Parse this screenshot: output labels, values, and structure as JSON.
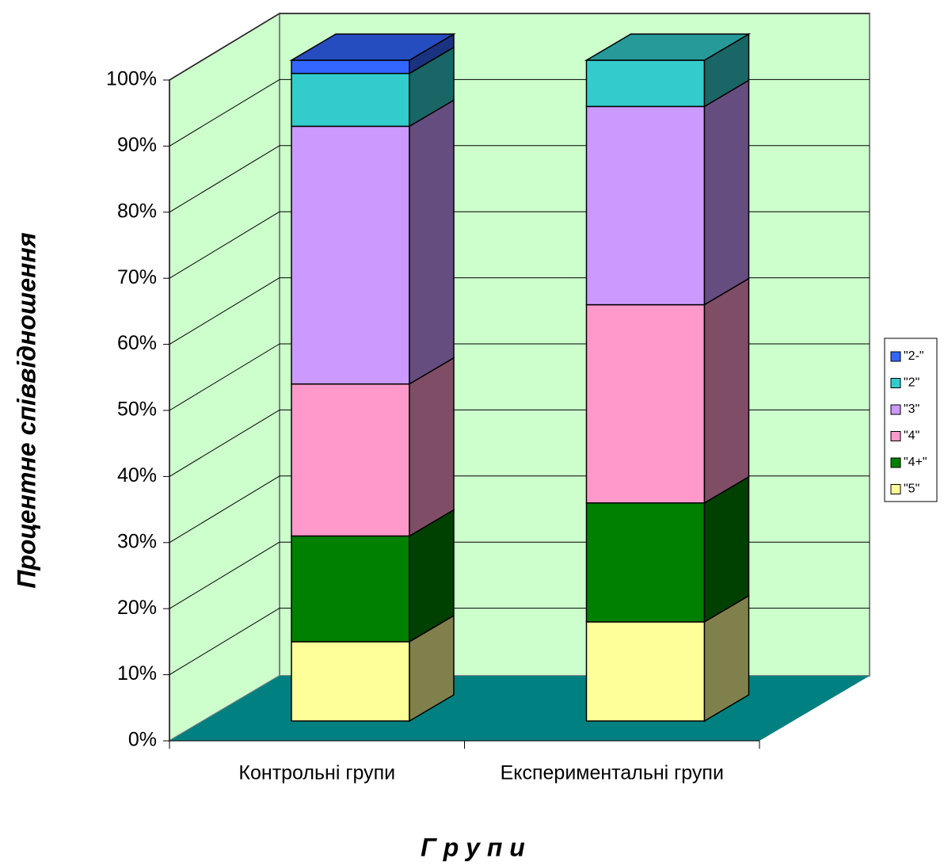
{
  "chart_data": {
    "type": "bar3d_stacked_percent",
    "y_axis_label": "Процентне співвідношення",
    "x_axis_label": "Г р у п и",
    "categories": [
      "Контрольні групи",
      "Експериментальні групи"
    ],
    "series": [
      {
        "name": "\"5\"",
        "color": "#ffff99",
        "values": [
          12,
          15
        ]
      },
      {
        "name": "\"4+\"",
        "color": "#008000",
        "values": [
          16,
          18
        ]
      },
      {
        "name": "\"4\"",
        "color": "#ff99cc",
        "values": [
          23,
          30
        ]
      },
      {
        "name": "\"3\"",
        "color": "#cc99ff",
        "values": [
          39,
          30
        ]
      },
      {
        "name": "\"2\"",
        "color": "#33cccc",
        "values": [
          8,
          7
        ]
      },
      {
        "name": "\"2-\"",
        "color": "#3366ff",
        "values": [
          2,
          0
        ]
      }
    ],
    "ylim": [
      0,
      100
    ],
    "yticks": [
      {
        "value": 0,
        "label": "0%"
      },
      {
        "value": 10,
        "label": "10%"
      },
      {
        "value": 20,
        "label": "20%"
      },
      {
        "value": 30,
        "label": "30%"
      },
      {
        "value": 40,
        "label": "40%"
      },
      {
        "value": 50,
        "label": "50%"
      },
      {
        "value": 60,
        "label": "60%"
      },
      {
        "value": 70,
        "label": "70%"
      },
      {
        "value": 80,
        "label": "80%"
      },
      {
        "value": 90,
        "label": "90%"
      },
      {
        "value": 100,
        "label": "100%"
      }
    ],
    "grid": true,
    "legend": "right"
  }
}
